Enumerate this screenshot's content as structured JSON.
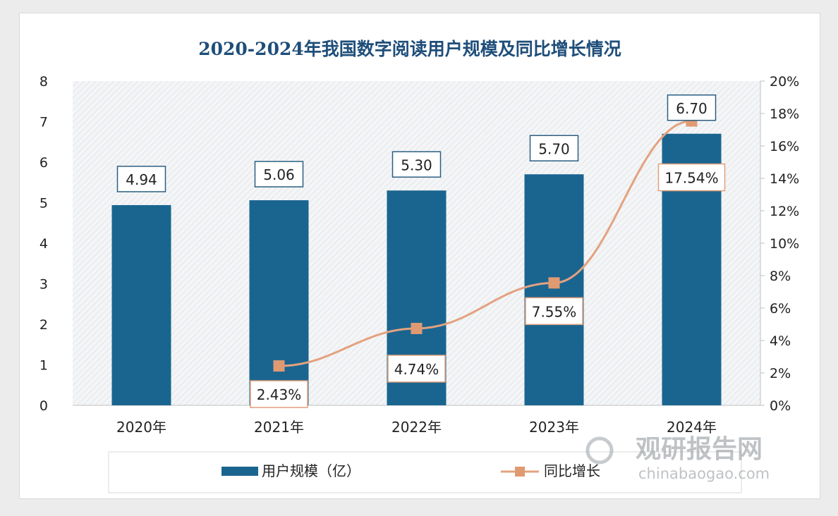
{
  "chart_data": {
    "type": "bar+line",
    "title": "2020-2024年我国数字阅读用户规模及同比增长情况",
    "categories": [
      "2020年",
      "2021年",
      "2022年",
      "2023年",
      "2024年"
    ],
    "series": [
      {
        "name": "用户规模（亿）",
        "type": "bar",
        "axis": "left",
        "values": [
          4.94,
          5.06,
          5.3,
          5.7,
          6.7
        ],
        "labels": [
          "4.94",
          "5.06",
          "5.30",
          "5.70",
          "6.70"
        ]
      },
      {
        "name": "同比增长",
        "type": "line",
        "axis": "right",
        "values": [
          null,
          2.43,
          4.74,
          7.55,
          17.54
        ],
        "labels": [
          "",
          "2.43%",
          "4.74%",
          "7.55%",
          "17.54%"
        ]
      }
    ],
    "y_left": {
      "min": 0,
      "max": 8,
      "ticks": [
        "0",
        "1",
        "2",
        "3",
        "4",
        "5",
        "6",
        "7",
        "8"
      ]
    },
    "y_right": {
      "min": 0,
      "max": 20,
      "ticks": [
        "0%",
        "2%",
        "4%",
        "6%",
        "8%",
        "10%",
        "12%",
        "14%",
        "16%",
        "18%",
        "20%"
      ]
    },
    "legend_position": "bottom"
  },
  "watermark": {
    "name": "观研报告网",
    "url": "chinabaogao.com"
  },
  "colors": {
    "bar": "#1a6590",
    "line": "#e3a27f",
    "marker": "#e09a72",
    "title": "#1f4e79",
    "label_border_bar": "#2a5f82",
    "label_border_line": "#e0a07a"
  }
}
